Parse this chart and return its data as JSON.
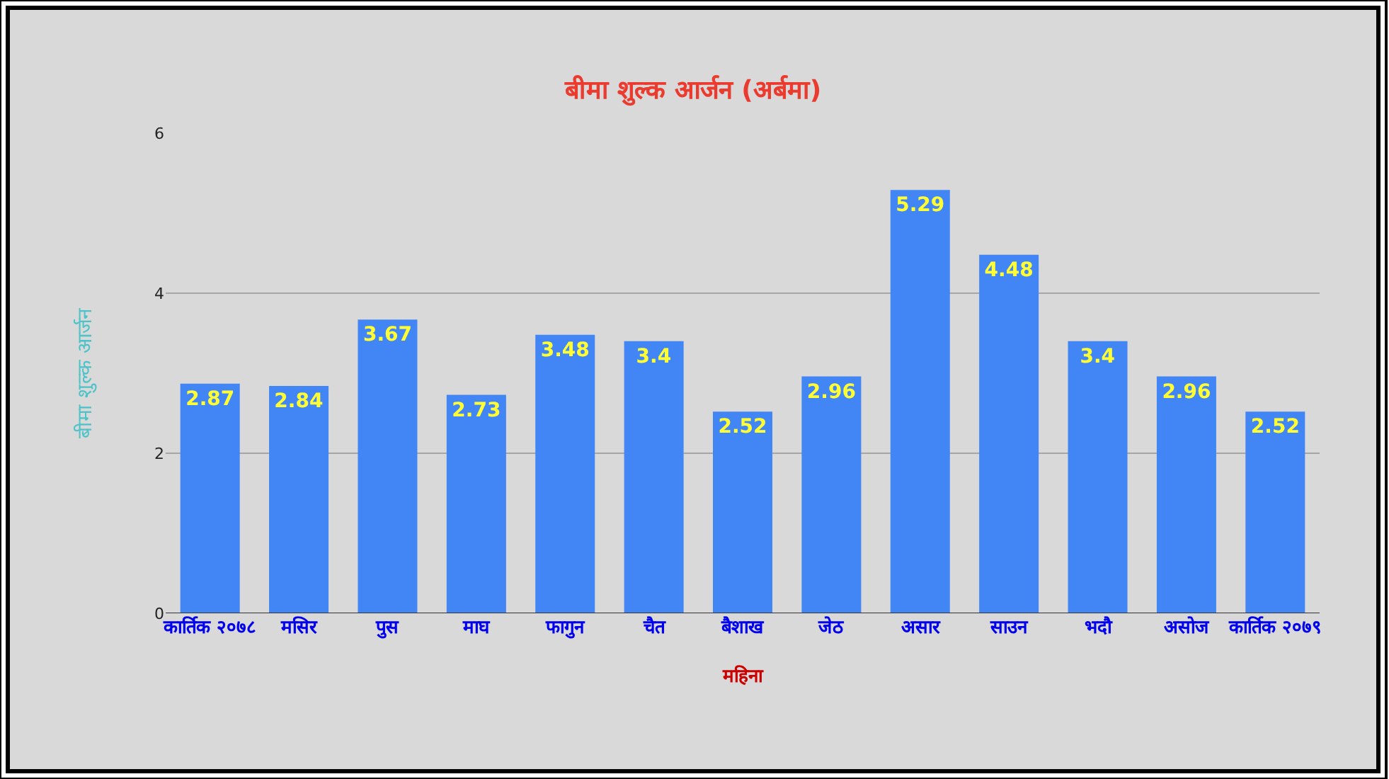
{
  "chart_data": {
    "type": "bar",
    "title": "बीमा शुल्क आर्जन (अर्बमा)",
    "xlabel": "महिना",
    "ylabel": "बीमा शुल्क आर्जन",
    "categories": [
      "कार्तिक २०७८",
      "मसिर",
      "पुस",
      "माघ",
      "फागुन",
      "चैत",
      "बैशाख",
      "जेठ",
      "असार",
      "साउन",
      "भदौ",
      "असोज",
      "कार्तिक २०७९"
    ],
    "values": [
      2.87,
      2.84,
      3.67,
      2.73,
      3.48,
      3.4,
      2.52,
      2.96,
      5.29,
      4.48,
      3.4,
      2.96,
      2.52
    ],
    "color": "#4285f4",
    "ylim": [
      0,
      6
    ],
    "yticks": [
      0,
      2,
      4,
      6
    ],
    "grid": "y",
    "data_labels": true
  }
}
